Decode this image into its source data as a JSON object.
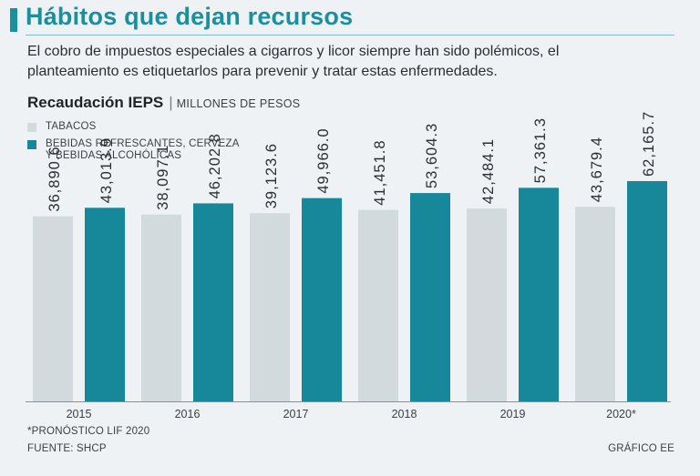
{
  "header": {
    "title": "Hábitos que dejan recursos",
    "subtitle_lines": [
      "El cobro de impuestos especiales a cigarros y licor siempre han sido polémicos, el",
      "planteamiento es etiquetarlos para prevenir y tratar estas enfermedades."
    ]
  },
  "chart_heading": {
    "title": "Recaudación IEPS",
    "separator": "|",
    "units": "MILLONES DE PESOS"
  },
  "legend": [
    {
      "lines": [
        "TABACOS"
      ],
      "color": "#d3dadd"
    },
    {
      "lines": [
        "BEBIDAS REFRESCANTES, CERVEZA",
        "Y BEBIDAS ALCOHÓLICAS"
      ],
      "color": "#17879a"
    }
  ],
  "chart_data": {
    "type": "bar",
    "categories": [
      "2015",
      "2016",
      "2017",
      "2018",
      "2019",
      "2020*"
    ],
    "series": [
      {
        "name": "TABACOS",
        "values": [
          36890.6,
          38097.1,
          39123.6,
          41451.8,
          42484.1,
          43679.4
        ],
        "labels": [
          "36,890.6",
          "38,097.1",
          "39,123.6",
          "41,451.8",
          "42,484.1",
          "43,679.4"
        ],
        "color": "#d3dadd"
      },
      {
        "name": "BEBIDAS REFRESCANTES, CERVEZA Y BEBIDAS ALCOHÓLICAS",
        "values": [
          43013.9,
          46202.8,
          49966.0,
          53604.3,
          57361.3,
          62165.7
        ],
        "labels": [
          "43,013.9",
          "46,202.8",
          "49,966.0",
          "53,604.3",
          "57,361.3",
          "62,165.7"
        ],
        "color": "#17879a"
      }
    ],
    "ylim": [
      -96000,
      62165.7
    ],
    "grid": false,
    "legend_position": "top-left"
  },
  "footer": {
    "footnote": "*PRONÓSTICO LIF 2020",
    "source": "FUENTE: SHCP",
    "credit": "GRÁFICO EE"
  }
}
